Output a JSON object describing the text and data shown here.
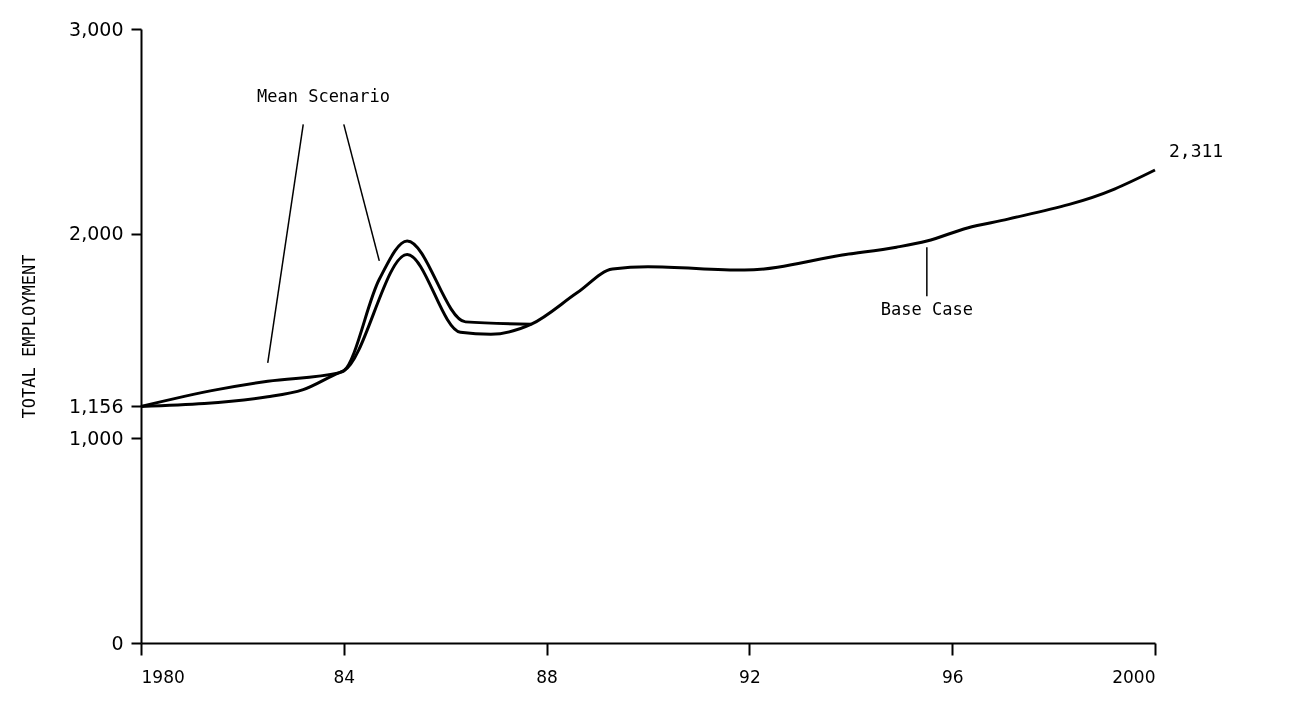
{
  "chart_data": {
    "type": "line",
    "ylabel": "TOTAL EMPLOYMENT",
    "xlim": [
      1980,
      2000
    ],
    "xticks": [
      {
        "value": 1980,
        "label": "1980"
      },
      {
        "value": 1984,
        "label": "84"
      },
      {
        "value": 1988,
        "label": "88"
      },
      {
        "value": 1992,
        "label": "92"
      },
      {
        "value": 1996,
        "label": "96"
      },
      {
        "value": 2000,
        "label": "2000"
      }
    ],
    "ylim": [
      0,
      3000
    ],
    "yticks": [
      {
        "value": 0,
        "label": "0"
      },
      {
        "value": 1000,
        "label": "1,000"
      },
      {
        "value": 1156,
        "label": "1,156"
      },
      {
        "value": 2000,
        "label": "2,000"
      },
      {
        "value": 3000,
        "label": "3,000"
      }
    ],
    "series": [
      {
        "name": "Mean Scenario",
        "color": "#000000",
        "x": [
          1980,
          1981.5,
          1982.5,
          1983.9,
          1984,
          1984.7,
          1985.25,
          1986.4,
          1987.7
        ],
        "values": [
          1156,
          1238,
          1279,
          1320,
          1330,
          1777,
          1964,
          1569,
          1558
        ]
      },
      {
        "name": "Base Case",
        "color": "#000000",
        "x": [
          1980,
          1982.5,
          1983.2,
          1983.9,
          1984,
          1985.25,
          1986.3,
          1986.9,
          1987.7,
          1988.6,
          1989.3,
          1990,
          1991.9,
          1993.9,
          1994.9,
          1995.5,
          1996.3,
          1997.1,
          1999.2,
          2000
        ],
        "values": [
          1156,
          1203,
          1238,
          1320,
          1330,
          1898,
          1518,
          1508,
          1558,
          1711,
          1827,
          1838,
          1822,
          1898,
          1934,
          1964,
          2028,
          2071,
          2218,
          2311
        ]
      }
    ],
    "annotations": [
      {
        "text": "2,311",
        "x": 2000,
        "y": 2311
      }
    ],
    "grid": false,
    "legend": false,
    "marker": "none",
    "line_style": "solid"
  }
}
